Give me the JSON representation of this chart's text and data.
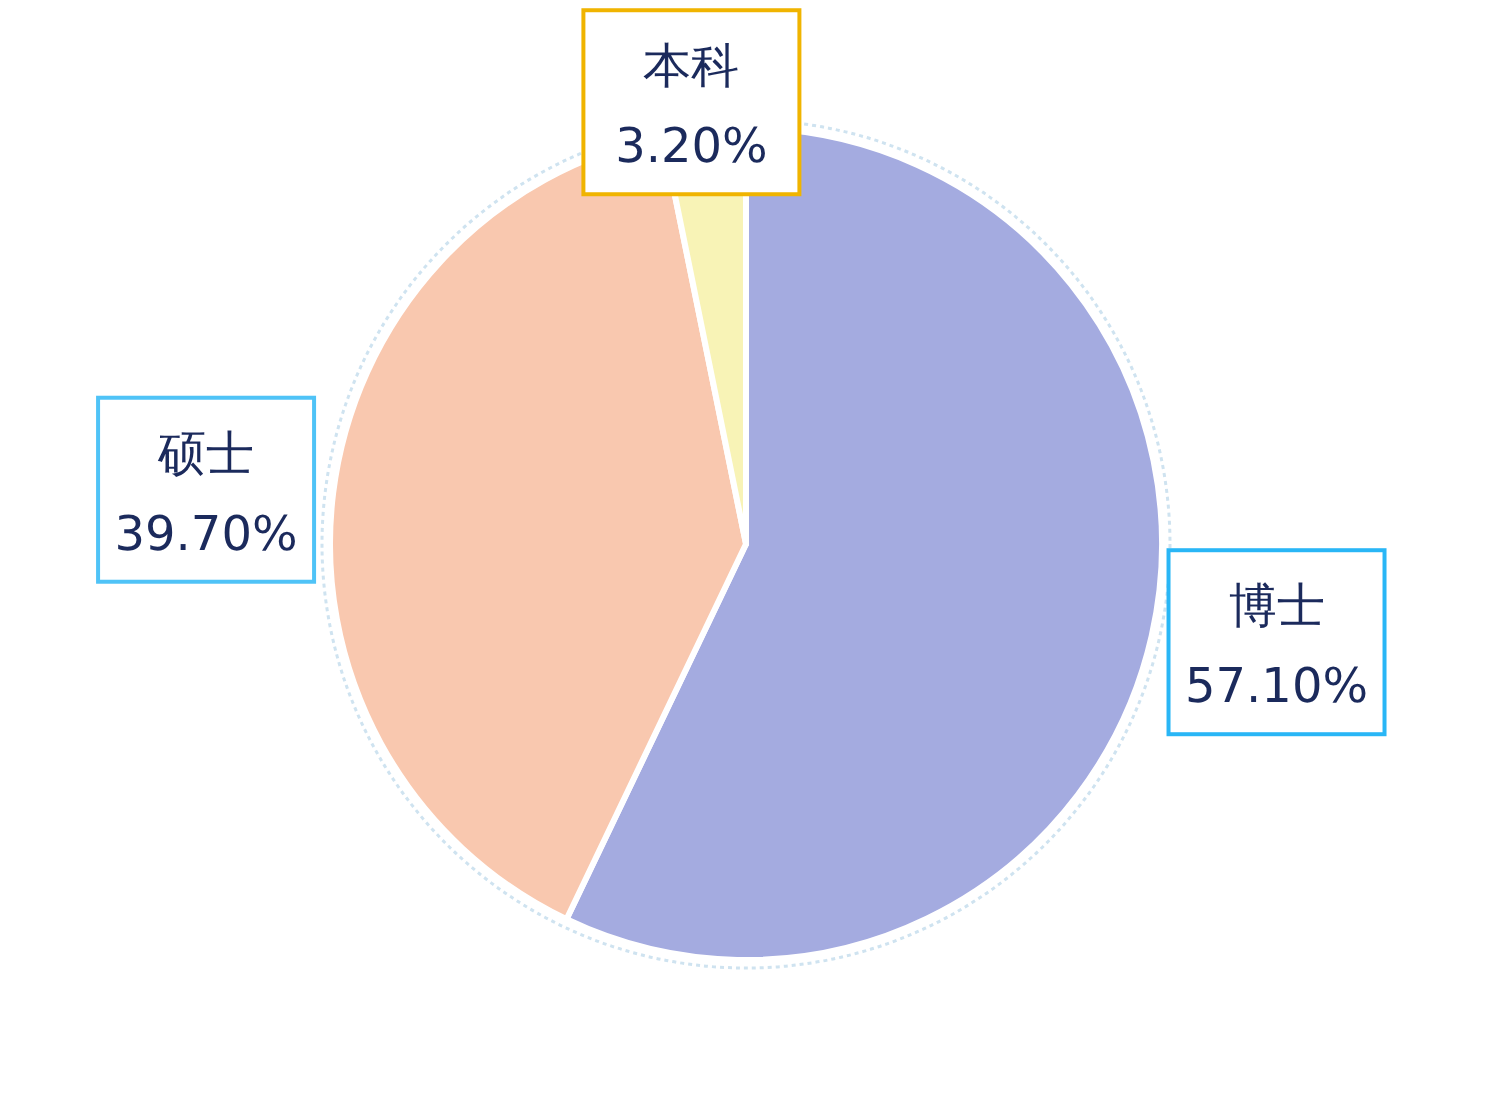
{
  "chart_data": {
    "type": "pie",
    "categories": [
      "博士",
      "硕士",
      "本科"
    ],
    "values": [
      57.1,
      39.7,
      3.2
    ],
    "colors": [
      "#a4abe0",
      "#f9c8af",
      "#f8f3b6"
    ],
    "value_labels": [
      "57.10%",
      "39.70%",
      "3.20%"
    ]
  }
}
